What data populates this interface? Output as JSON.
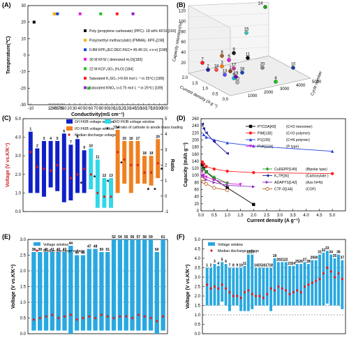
{
  "chart_data": [
    {
      "panel": "(A)",
      "type": "scatter",
      "xlabel": "Conductivity(mS cm⁻¹)",
      "ylabel": "Temperature(℃)",
      "xlim": [
        -10,
        200
      ],
      "ylim": [
        -30,
        30
      ],
      "xticks": [
        -10,
        1,
        2,
        3,
        4,
        5,
        6,
        7,
        8,
        9,
        10,
        20,
        30,
        40,
        50,
        60,
        70,
        80,
        90,
        100,
        110,
        120,
        130,
        140,
        150,
        160,
        170,
        180,
        190,
        200
      ],
      "yticks": [
        -30,
        -20,
        -10,
        0,
        10,
        20,
        30
      ],
      "series": [
        {
          "name": "Poly (propylene carbonate) (PPC)- 18 wt% KFSI [193]",
          "color": "#000000",
          "points": [
            [
              -8,
              20
            ]
          ]
        },
        {
          "name": "Poly(methyl methacrylate) (PMMA)- KPF₆[198]",
          "color": "#f0b400",
          "points": [
            [
              4,
              25
            ],
            [
              5,
              25
            ]
          ]
        },
        {
          "name": "0.8M KPF₆(EC:DEC:FEC= 45:45:10, v:v:v) [198]",
          "color": "#2040e0",
          "points": [
            [
              6,
              25
            ]
          ]
        },
        {
          "name": "30 M KFSI ( deionized H₂O)[183]",
          "color": "#e020e0",
          "points": [
            [
              40,
              25
            ]
          ]
        },
        {
          "name": "22 M KCF₃SO₃ (H₂O) [184]",
          "color": "#20c020",
          "points": [
            [
              79,
              25
            ],
            [
              56,
              -20
            ]
          ]
        },
        {
          "name": "Saturated K₂SO₄ (≈0.69 mol L⁻¹ in 25℃) [189]",
          "color": "#ff2020",
          "points": [
            [
              110,
              25
            ]
          ]
        },
        {
          "name": "Saturated KNO₃ (≈3.75 mol L⁻¹ in 25℃) [189]",
          "color": "#9020d0",
          "points": [
            [
              140,
              25
            ]
          ]
        }
      ]
    },
    {
      "panel": "(B)",
      "type": "scatter3d",
      "xlabel": "Current density (A g⁻¹)",
      "ylabel": "Cycle number",
      "zlabel": "Capacity retention(%)",
      "x_ticks": [
        0.0,
        0.5,
        1.0,
        1.5,
        2.0
      ],
      "y_ticks": [
        1000,
        2000,
        3000,
        4000,
        5000
      ],
      "z_ticks": [
        20,
        40,
        60,
        80,
        100,
        120
      ],
      "point_labels": [
        "1",
        "2",
        "3",
        "4",
        "5",
        "6",
        "7",
        "8",
        "9",
        "10",
        "11",
        "12",
        "13",
        "14",
        "15",
        "16",
        "17",
        "18",
        "19",
        "20"
      ]
    },
    {
      "panel": "(C)",
      "type": "bar",
      "ylabel": "Voltage (V vs.K/K⁺)",
      "y2label": "Ratio",
      "ylim": [
        0.0,
        5.0
      ],
      "y2lim": [
        -1,
        5
      ],
      "legend": [
        "O/I FKIB voltage window",
        "I/O FKIB voltage window",
        "O/O FKIB voltage window",
        "The ratio of cathode to anode mass loading",
        "Median discharge voltage"
      ],
      "colors": {
        "OI": "#1020c8",
        "IO": "#f08020",
        "OO": "#30d8e8",
        "median": "#e02020",
        "ratio": "#000000"
      },
      "bars": [
        {
          "label": "1",
          "group": "OI",
          "low": 1.0,
          "high": 4.3,
          "median": 3.2,
          "ratio": null
        },
        {
          "label": "2",
          "group": "OI",
          "low": 1.0,
          "high": 3.4,
          "median": 2.4,
          "ratio": null
        },
        {
          "label": "3",
          "group": "OI",
          "low": 0.8,
          "high": 3.8,
          "median": 2.3,
          "ratio": null
        },
        {
          "label": "4",
          "group": "OI",
          "low": 1.3,
          "high": 3.8,
          "median": 2.2,
          "ratio": null
        },
        {
          "label": "5",
          "group": "OI",
          "low": 1.1,
          "high": 3.8,
          "median": 2.5,
          "ratio": null
        },
        {
          "label": "6",
          "group": "OI",
          "low": 0.5,
          "high": 4.2,
          "median": 2.3,
          "ratio": null
        },
        {
          "label": "7",
          "group": "OI",
          "low": 0.6,
          "high": 3.6,
          "median": 1.8,
          "ratio": null
        },
        {
          "label": "8",
          "group": "OI",
          "low": 1.0,
          "high": 3.9,
          "median": 2.0,
          "ratio": 0.9
        },
        {
          "label": "9",
          "group": "OI",
          "low": 1.0,
          "high": 3.3,
          "median": 2.3,
          "ratio": null
        },
        {
          "label": "10",
          "group": "OO",
          "low": 1.2,
          "high": 3.4,
          "median": 2.0,
          "ratio": 1.3
        },
        {
          "label": "11",
          "group": "OO",
          "low": 0.2,
          "high": 2.8,
          "median": 1.0,
          "ratio": null
        },
        {
          "label": "12",
          "group": "OO",
          "low": 0.2,
          "high": 1.8,
          "median": 0.8,
          "ratio": 1.0
        },
        {
          "label": "13",
          "group": "OO",
          "low": 0.2,
          "high": 1.8,
          "median": 0.8,
          "ratio": null
        },
        {
          "label": "14",
          "group": "IO",
          "low": 1.0,
          "high": 4.4,
          "median": 3.2,
          "ratio": 2.2
        },
        {
          "label": "15",
          "group": "IO",
          "low": 1.5,
          "high": 3.8,
          "median": 2.8,
          "ratio": null
        },
        {
          "label": "16",
          "group": "IO",
          "low": 1.0,
          "high": 3.8,
          "median": 2.5,
          "ratio": null
        },
        {
          "label": "17",
          "group": "IO",
          "low": 1.5,
          "high": 3.8,
          "median": 2.5,
          "ratio": null
        },
        {
          "label": "18",
          "group": "IO",
          "low": 1.5,
          "high": 3.0,
          "median": 2.1,
          "ratio": 0.5
        },
        {
          "label": "19",
          "group": "IO",
          "low": 1.4,
          "high": 3.0,
          "median": 2.1,
          "ratio": 0.5
        },
        {
          "label": "20",
          "group": "IO",
          "low": 1.8,
          "high": 3.9,
          "median": 2.6,
          "ratio": 1.8
        }
      ]
    },
    {
      "panel": "(D)",
      "type": "line",
      "xlabel": "Current density (A g⁻¹)",
      "ylabel": "Capacity (mAh g⁻¹)",
      "xlim": [
        0,
        5.5
      ],
      "ylim": [
        0,
        260
      ],
      "series": [
        {
          "name": "PTCDA",
          "ref": "[43]",
          "desc": "(C=O monomer)",
          "color": "#000000",
          "marker": "square",
          "x": [
            0.05,
            0.1,
            0.2,
            0.5,
            1.0,
            2.0
          ],
          "y": [
            130,
            120,
            110,
            90,
            65,
            18
          ]
        },
        {
          "name": "PIM",
          "ref": "[138]",
          "desc": "(C=O polymer)",
          "color": "#ff2020",
          "marker": "circle",
          "x": [
            0.05,
            0.1,
            0.2,
            0.5,
            1.0,
            2.0,
            5.0
          ],
          "y": [
            138,
            132,
            125,
            118,
            112,
            108,
            105
          ]
        },
        {
          "name": "P1",
          "ref": "[139]",
          "desc": "(C=N polymer)",
          "color": "#2040e0",
          "marker": "triangle-up",
          "x": [
            0.1,
            0.2,
            0.5,
            1.0,
            2.0,
            5.0
          ],
          "y": [
            215,
            208,
            200,
            192,
            183,
            168
          ]
        },
        {
          "name": "PVK",
          "ref": "[124]",
          "desc": "(P type)",
          "color": "#e020e0",
          "marker": "triangle-down",
          "x": [
            0.05,
            0.1,
            0.2,
            0.5,
            1.0,
            1.5
          ],
          "y": [
            112,
            100,
            95,
            88,
            78,
            74
          ]
        },
        {
          "name": "CuDEPP",
          "ref": "[140]",
          "desc": "(Bipolar type)",
          "color": "#20a020",
          "marker": "diamond",
          "x": [
            0.1,
            0.2,
            0.5,
            1.0
          ],
          "y": [
            118,
            110,
            95,
            78
          ]
        },
        {
          "name": "K₂TP",
          "ref": "[36]",
          "desc": "(Carboxylate )",
          "color": "#2020a0",
          "marker": "triangle-left",
          "x": [
            0.05,
            0.1,
            0.2,
            0.5,
            1.0
          ],
          "y": [
            245,
            232,
            220,
            195,
            162
          ]
        },
        {
          "name": "ADAPTS",
          "ref": "[142]",
          "desc": "(Azo N=N)",
          "color": "#9030c0",
          "marker": "triangle-right",
          "x": [
            0.05,
            0.1,
            0.2,
            0.5,
            1.0,
            2.0
          ],
          "y": [
            100,
            95,
            88,
            80,
            72,
            68
          ]
        },
        {
          "name": "CTF-0",
          "ref": "[144]",
          "desc": "(COF)",
          "color": "#b06020",
          "marker": "circle-open",
          "x": [
            0.05,
            0.1,
            0.2,
            0.5,
            1.0
          ],
          "y": [
            90,
            82,
            76,
            65,
            58
          ]
        }
      ]
    },
    {
      "panel": "(E)",
      "type": "bar",
      "ylabel": "Voltage (V vs.K/K⁺)",
      "ylim": [
        0.0,
        3.0
      ],
      "legend": [
        "Voltage window",
        "Median discharge voltage"
      ],
      "colors": {
        "bar": "#29a8e0",
        "median": "#e02020"
      },
      "bars": [
        {
          "label": "38",
          "low": 0.1,
          "high": 2.6,
          "median": 0.45
        },
        {
          "label": "39",
          "low": 0.1,
          "high": 2.6,
          "median": 0.5
        },
        {
          "label": "40",
          "low": 0.1,
          "high": 2.6,
          "median": 0.55
        },
        {
          "label": "41",
          "low": 0.1,
          "high": 2.6,
          "median": 0.6
        },
        {
          "label": "42",
          "low": 0.1,
          "high": 2.6,
          "median": 0.5
        },
        {
          "label": "43",
          "low": 0.1,
          "high": 2.6,
          "median": 0.55
        },
        {
          "label": "44",
          "low": 0.0,
          "high": 2.8,
          "median": 0.6
        },
        {
          "label": "45",
          "low": 0.1,
          "high": 2.5,
          "median": 0.45
        },
        {
          "label": "46",
          "low": 0.1,
          "high": 2.5,
          "median": 0.5
        },
        {
          "label": "47",
          "low": 0.1,
          "high": 2.7,
          "median": 0.55
        },
        {
          "label": "48",
          "low": 0.1,
          "high": 2.7,
          "median": 0.5
        },
        {
          "label": "50",
          "low": 0.1,
          "high": 2.6,
          "median": 0.6
        },
        {
          "label": "51",
          "low": 0.1,
          "high": 2.6,
          "median": 0.55
        },
        {
          "label": "52",
          "low": 0.1,
          "high": 3.0,
          "median": 0.5
        },
        {
          "label": "54",
          "low": 0.1,
          "high": 3.0,
          "median": 0.55
        },
        {
          "label": "55",
          "low": 0.1,
          "high": 3.0,
          "median": 0.55
        },
        {
          "label": "56",
          "low": 0.1,
          "high": 3.0,
          "median": 0.5
        },
        {
          "label": "57",
          "low": 0.1,
          "high": 3.0,
          "median": 0.6
        },
        {
          "label": "58",
          "low": 0.1,
          "high": 3.0,
          "median": 0.55
        },
        {
          "label": "59",
          "low": 0.1,
          "high": 3.0,
          "median": 0.5
        },
        {
          "label": "60",
          "low": 0.0,
          "high": 2.6,
          "median": 0.4
        },
        {
          "label": "61",
          "low": 0.1,
          "high": 3.0,
          "median": 0.55
        }
      ]
    },
    {
      "panel": "(F)",
      "type": "bar",
      "ylabel": "Voltage (V vs.K/K⁺)",
      "ylim": [
        0.0,
        5.0
      ],
      "legend": [
        "Voltage window",
        "Median discharge voltage"
      ],
      "colors": {
        "bar": "#29a8e0",
        "median": "#e02020"
      },
      "bars": [
        {
          "label": "1",
          "low": 1.5,
          "high": 3.5,
          "median": 2.6
        },
        {
          "label": "2",
          "low": 1.5,
          "high": 3.5,
          "median": 2.4
        },
        {
          "label": "3",
          "low": 1.5,
          "high": 3.7,
          "median": 2.5
        },
        {
          "label": "4",
          "low": 1.5,
          "high": 3.6,
          "median": 2.4
        },
        {
          "label": "5",
          "low": 1.7,
          "high": 3.8,
          "median": 2.6
        },
        {
          "label": "6",
          "low": 1.5,
          "high": 3.7,
          "median": 2.4
        },
        {
          "label": "7",
          "low": 1.2,
          "high": 3.5,
          "median": 2.2
        },
        {
          "label": "8",
          "low": 1.5,
          "high": 3.5,
          "median": 2.0
        },
        {
          "label": "9",
          "low": 1.5,
          "high": 3.5,
          "median": 2.0
        },
        {
          "label": "10",
          "low": 1.2,
          "high": 3.5,
          "median": 1.9
        },
        {
          "label": "11",
          "low": 1.2,
          "high": 3.6,
          "median": 2.2
        },
        {
          "label": "12",
          "low": 1.2,
          "high": 4.2,
          "median": 2.3
        },
        {
          "label": "13",
          "low": 1.3,
          "high": 4.2,
          "median": 2.1
        },
        {
          "label": "14",
          "low": 1.5,
          "high": 3.5,
          "median": 2.0
        },
        {
          "label": "15",
          "low": 1.5,
          "high": 3.5,
          "median": 2.0
        },
        {
          "label": "16",
          "low": 1.5,
          "high": 3.5,
          "median": 1.9
        },
        {
          "label": "17",
          "low": 1.5,
          "high": 3.5,
          "median": 2.1
        },
        {
          "label": "18",
          "low": 1.2,
          "high": 3.5,
          "median": 2.4
        },
        {
          "label": "19",
          "low": 1.5,
          "high": 4.0,
          "median": 2.3
        },
        {
          "label": "20",
          "low": 1.5,
          "high": 3.8,
          "median": 2.5
        },
        {
          "label": "21",
          "low": 1.5,
          "high": 3.8,
          "median": 2.4
        },
        {
          "label": "22",
          "low": 1.5,
          "high": 3.8,
          "median": 2.3
        },
        {
          "label": "23",
          "low": 1.5,
          "high": 3.6,
          "median": 2.1
        },
        {
          "label": "24",
          "low": 1.5,
          "high": 3.6,
          "median": 2.2
        },
        {
          "label": "25",
          "low": 1.5,
          "high": 3.7,
          "median": 2.3
        },
        {
          "label": "26",
          "low": 1.5,
          "high": 3.7,
          "median": 2.2
        },
        {
          "label": "27",
          "low": 1.5,
          "high": 3.8,
          "median": 2.5
        },
        {
          "label": "28",
          "low": 1.5,
          "high": 3.7,
          "median": 2.6
        },
        {
          "label": "29",
          "low": 1.5,
          "high": 3.9,
          "median": 2.7
        },
        {
          "label": "30",
          "low": 1.5,
          "high": 3.9,
          "median": 2.8
        },
        {
          "label": "31",
          "low": 1.5,
          "high": 4.2,
          "median": 2.9
        },
        {
          "label": "32",
          "low": 1.5,
          "high": 4.3,
          "median": 3.2
        },
        {
          "label": "33",
          "low": 1.6,
          "high": 4.4,
          "median": 3.5
        },
        {
          "label": "34",
          "low": 1.5,
          "high": 4.2,
          "median": 3.3
        },
        {
          "label": "35",
          "low": 1.5,
          "high": 4.0,
          "median": 3.0
        },
        {
          "label": "36",
          "low": 1.5,
          "high": 4.2,
          "median": 3.2
        },
        {
          "label": "37",
          "low": 1.3,
          "high": 3.9,
          "median": 2.9
        }
      ]
    }
  ]
}
